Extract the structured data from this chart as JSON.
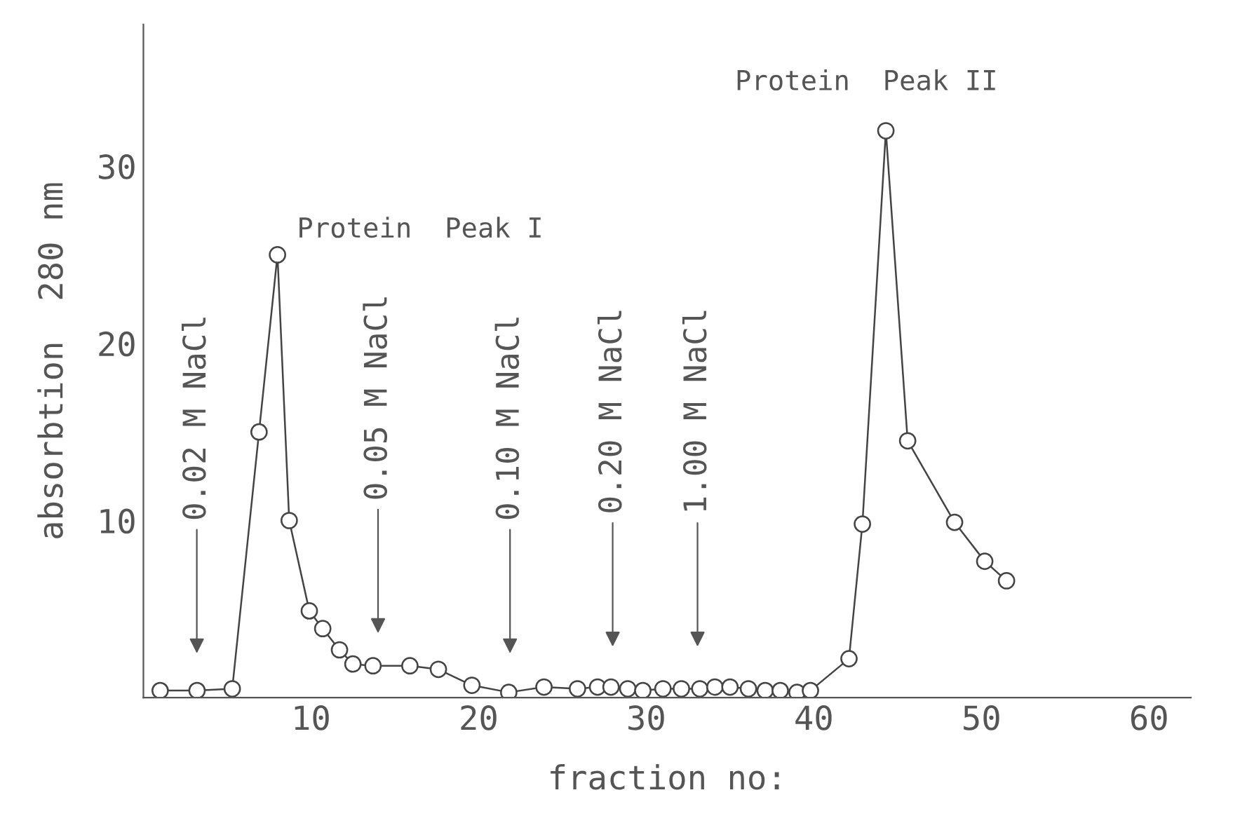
{
  "chart_data": {
    "type": "line",
    "xlabel": "fraction no:",
    "ylabel": "absorbtion  280 nm",
    "x": [
      1.0,
      3.2,
      5.3,
      6.9,
      8.0,
      8.7,
      9.9,
      10.7,
      11.7,
      12.5,
      13.7,
      15.9,
      17.6,
      19.6,
      21.8,
      23.9,
      25.9,
      27.1,
      27.9,
      28.9,
      29.8,
      31.0,
      32.1,
      33.2,
      34.1,
      35.0,
      36.1,
      37.1,
      38.0,
      39.0,
      39.8,
      42.1,
      42.9,
      44.3,
      45.6,
      48.4,
      50.2,
      51.5
    ],
    "series": [
      {
        "color": "#444444",
        "values": [
          0.4,
          0.4,
          0.5,
          15,
          25,
          10,
          4.9,
          3.9,
          2.7,
          1.9,
          1.8,
          1.8,
          1.6,
          0.7,
          0.3,
          0.6,
          0.5,
          0.6,
          0.6,
          0.5,
          0.4,
          0.5,
          0.5,
          0.5,
          0.6,
          0.6,
          0.5,
          0.4,
          0.4,
          0.3,
          0.4,
          2.2,
          9.8,
          32,
          14.5,
          9.9,
          7.7,
          6.6
        ]
      }
    ],
    "marker": "circle",
    "line_style": "solid",
    "xlim": [
      0,
      62.5
    ],
    "ylim": [
      0,
      38
    ],
    "xticks": [
      10,
      20,
      30,
      40,
      50,
      60
    ],
    "yticks": [
      10,
      20,
      30
    ],
    "grid": false,
    "legend": false,
    "annotations": [
      "0.02 M NaCl",
      "0.05 M NaCl",
      "0.10 M NaCl",
      "0.20 M NaCl",
      "1.00 M NaCl",
      {
        "text": "Protein  Peak I",
        "x": 8.0,
        "y": 25
      },
      {
        "text": "Protein  Peak II",
        "x": 44.3,
        "y": 32
      }
    ]
  }
}
